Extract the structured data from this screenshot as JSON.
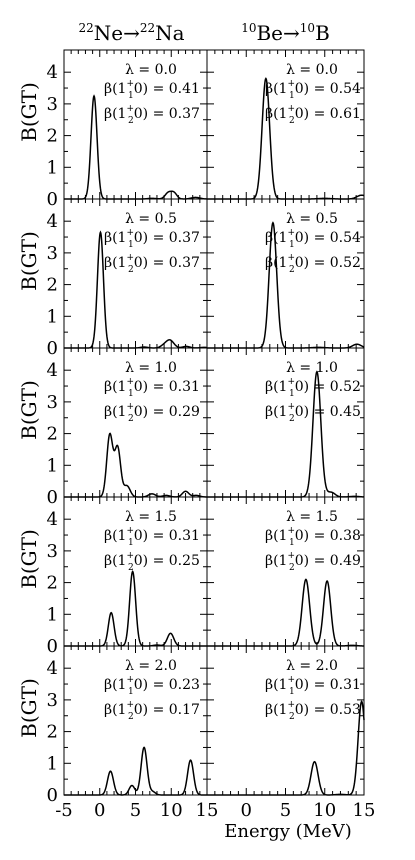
{
  "chart_data": {
    "type": "line",
    "columns": [
      {
        "title_pre": "22",
        "title_a": "Ne",
        "title_arrow": "→",
        "title_post": "22",
        "title_b": "Na"
      },
      {
        "title_pre": "10",
        "title_a": "Be",
        "title_arrow": "→",
        "title_post": "10",
        "title_b": "B"
      }
    ],
    "ylabel": "B(GT)",
    "xlabel": "Energy (MeV)",
    "xlim": [
      -5,
      15
    ],
    "xticks": [
      "-5",
      "0",
      "5",
      "10",
      "15"
    ],
    "ylim": [
      0,
      4.7
    ],
    "yticks": [
      "0",
      "1",
      "2",
      "3",
      "4"
    ],
    "beta_labels": {
      "b1": "β(1",
      "b2": "β(1",
      "sup": "+",
      "sub1": "1",
      "sub2": "2",
      "close": "0) = "
    },
    "panels": [
      {
        "lambda": "λ = 0.0",
        "left": {
          "beta1": "0.41",
          "beta2": "0.37",
          "peaks": [
            [
              -0.8,
              3.25,
              0.42
            ],
            [
              9.6,
              0.2,
              0.45
            ],
            [
              10.4,
              0.18,
              0.4
            ],
            [
              13.4,
              0.05,
              0.6
            ],
            [
              7.3,
              0.02,
              0.6
            ]
          ]
        },
        "right": {
          "beta1": "0.54",
          "beta2": "0.61",
          "peaks": [
            [
              2.5,
              3.8,
              0.48
            ],
            [
              14.7,
              0.12,
              0.6
            ],
            [
              10.0,
              0.02,
              0.8
            ]
          ]
        }
      },
      {
        "lambda": "λ = 0.5",
        "left": {
          "beta1": "0.37",
          "beta2": "0.37",
          "peaks": [
            [
              0.1,
              3.65,
              0.42
            ],
            [
              9.8,
              0.25,
              0.55
            ],
            [
              8.9,
              0.06,
              0.45
            ],
            [
              6.2,
              0.03,
              0.5
            ],
            [
              12.1,
              0.05,
              0.5
            ],
            [
              14.6,
              0.02,
              0.5
            ]
          ]
        },
        "right": {
          "beta1": "0.54",
          "beta2": "0.52",
          "peaks": [
            [
              3.4,
              3.95,
              0.48
            ],
            [
              14.1,
              0.12,
              0.55
            ],
            [
              9.2,
              0.02,
              0.8
            ]
          ]
        }
      },
      {
        "lambda": "λ = 1.0",
        "left": {
          "beta1": "0.31",
          "beta2": "0.29",
          "peaks": [
            [
              1.4,
              1.95,
              0.42
            ],
            [
              2.5,
              1.55,
              0.42
            ],
            [
              3.8,
              0.35,
              0.45
            ],
            [
              7.3,
              0.1,
              0.5
            ],
            [
              9.3,
              0.05,
              0.5
            ],
            [
              12.0,
              0.18,
              0.45
            ],
            [
              13.5,
              0.05,
              0.5
            ]
          ]
        },
        "right": {
          "beta1": "0.52",
          "beta2": "0.45",
          "peaks": [
            [
              9.0,
              3.95,
              0.5
            ],
            [
              10.8,
              0.15,
              0.5
            ],
            [
              13.8,
              0.02,
              0.6
            ]
          ]
        }
      },
      {
        "lambda": "λ = 1.5",
        "left": {
          "beta1": "0.31",
          "beta2": "0.25",
          "peaks": [
            [
              1.6,
              1.05,
              0.4
            ],
            [
              4.6,
              2.35,
              0.42
            ],
            [
              9.9,
              0.4,
              0.45
            ],
            [
              8.0,
              0.03,
              0.5
            ]
          ]
        },
        "right": {
          "beta1": "0.38",
          "beta2": "0.49",
          "peaks": [
            [
              7.6,
              2.1,
              0.48
            ],
            [
              10.3,
              2.05,
              0.46
            ],
            [
              13.5,
              0.02,
              0.6
            ]
          ]
        }
      },
      {
        "lambda": "λ = 2.0",
        "left": {
          "beta1": "0.23",
          "beta2": "0.17",
          "peaks": [
            [
              1.5,
              0.75,
              0.42
            ],
            [
              4.5,
              0.3,
              0.4
            ],
            [
              6.2,
              1.5,
              0.42
            ],
            [
              7.4,
              0.1,
              0.4
            ],
            [
              12.7,
              1.1,
              0.42
            ]
          ]
        },
        "right": {
          "beta1": "0.31",
          "beta2": "0.53",
          "peaks": [
            [
              8.7,
              1.05,
              0.45
            ],
            [
              14.7,
              2.95,
              0.45
            ],
            [
              12.0,
              0.02,
              0.6
            ]
          ]
        }
      }
    ]
  }
}
